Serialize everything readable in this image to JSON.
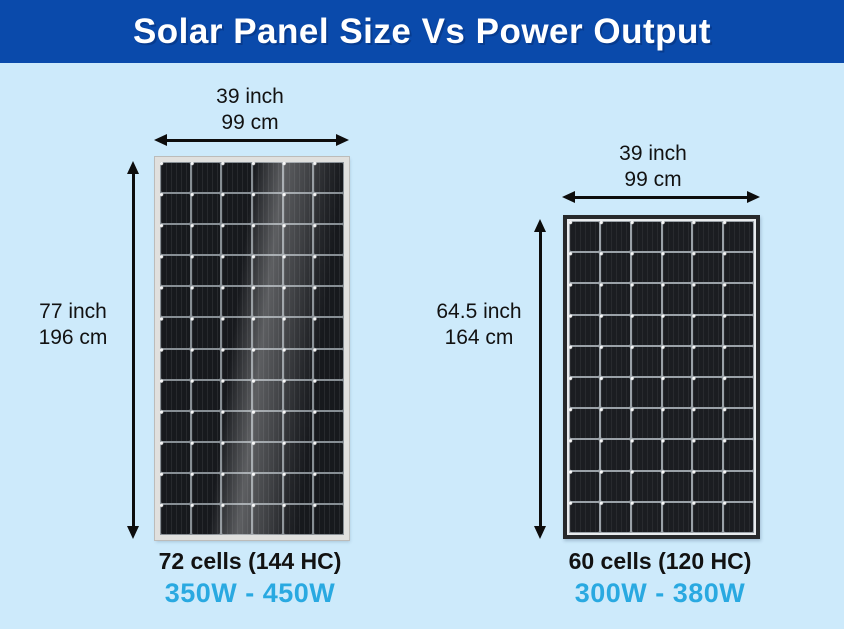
{
  "title": "Solar Panel Size Vs Power Output",
  "colors": {
    "title_bar_bg": "#0a4aab",
    "page_bg": "#cdeafb",
    "power_text": "#29a9e1",
    "arrow": "#0d0d0d"
  },
  "panels": [
    {
      "name": "72-cell solar panel",
      "width_label": {
        "line1": "39 inch",
        "line2": "99 cm"
      },
      "height_label": {
        "line1": "77 inch",
        "line2": "196 cm"
      },
      "cells_label": "72 cells (144 HC)",
      "power_label": "350W - 450W",
      "grid": {
        "cols": 6,
        "rows": 12
      }
    },
    {
      "name": "60-cell solar panel",
      "width_label": {
        "line1": "39 inch",
        "line2": "99 cm"
      },
      "height_label": {
        "line1": "64.5 inch",
        "line2": "164 cm"
      },
      "cells_label": "60 cells (120 HC)",
      "power_label": "300W - 380W",
      "grid": {
        "cols": 6,
        "rows": 10
      }
    }
  ]
}
